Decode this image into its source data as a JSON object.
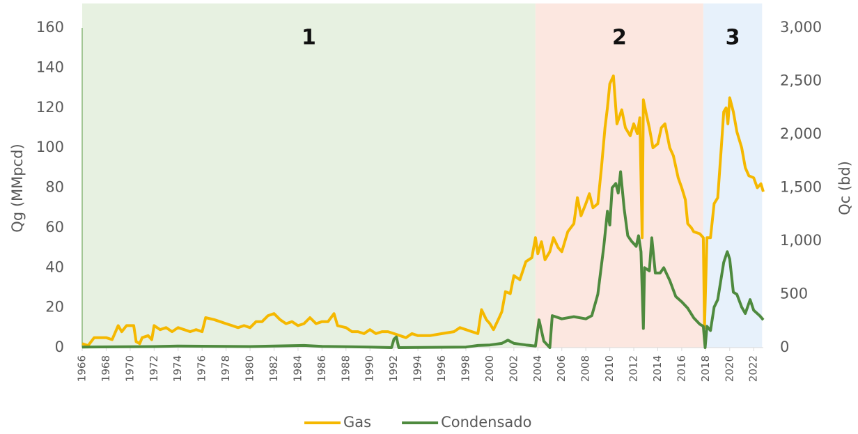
{
  "chart_data": {
    "type": "line",
    "y_label": "Qg (MMpcd)",
    "y2_label": "Qc (bd)",
    "xlim": [
      1966,
      2022.8
    ],
    "xticks": [
      1966,
      1968,
      1970,
      1972,
      1974,
      1976,
      1978,
      1980,
      1982,
      1984,
      1986,
      1988,
      1990,
      1992,
      1994,
      1996,
      1998,
      2000,
      2002,
      2004,
      2006,
      2008,
      2010,
      2012,
      2014,
      2016,
      2018,
      2020,
      2022
    ],
    "ylim": [
      0,
      160
    ],
    "yticks": [
      0,
      20,
      40,
      60,
      80,
      100,
      120,
      140,
      160
    ],
    "y2lim": [
      0,
      3000
    ],
    "y2ticks": [
      0,
      500,
      {
        "value": 1000,
        "label": "1,000"
      },
      {
        "value": 1500,
        "label": "1,500"
      },
      {
        "value": 2000,
        "label": "2,000"
      },
      {
        "value": 2500,
        "label": "2,500"
      },
      {
        "value": 3000,
        "label": "3,000"
      }
    ],
    "regions": [
      {
        "label": "1",
        "start": 1966,
        "end": 2003.8,
        "color": "#e7f1e1"
      },
      {
        "label": "2",
        "start": 2003.8,
        "end": 2017.8,
        "color": "#fce7e0"
      },
      {
        "label": "3",
        "start": 2017.8,
        "end": 2022.7,
        "color": "#e7f1fb"
      }
    ],
    "series": [
      {
        "name": "Gas",
        "color": "#f5b800",
        "axis": "y",
        "x": [
          1966,
          1966.5,
          1967,
          1967.5,
          1968,
          1968.5,
          1969,
          1969.3,
          1969.7,
          1970,
          1970.3,
          1970.5,
          1970.8,
          1971,
          1971.5,
          1971.8,
          1972,
          1972.5,
          1973,
          1973.5,
          1974,
          1974.5,
          1975,
          1975.5,
          1976,
          1976.3,
          1977,
          1977.5,
          1978,
          1978.5,
          1979,
          1979.5,
          1980,
          1980.5,
          1981,
          1981.5,
          1982,
          1982.5,
          1983,
          1983.5,
          1984,
          1984.5,
          1985,
          1985.5,
          1986,
          1986.5,
          1987,
          1987.3,
          1988,
          1988.5,
          1989,
          1989.5,
          1990,
          1990.5,
          1991,
          1991.5,
          1992,
          1992.5,
          1993,
          1993.5,
          1994,
          1994.5,
          1995,
          1996,
          1997,
          1997.5,
          1998,
          1998.5,
          1999,
          1999.3,
          1999.7,
          2000,
          2000.3,
          2000.7,
          2001,
          2001.3,
          2001.7,
          2002,
          2002.5,
          2003,
          2003.5,
          2003.8,
          2004,
          2004.3,
          2004.6,
          2005,
          2005.3,
          2005.7,
          2006,
          2006.5,
          2007,
          2007.3,
          2007.6,
          2008,
          2008.3,
          2008.6,
          2009,
          2009.3,
          2009.6,
          2009.8,
          2010,
          2010.3,
          2010.6,
          2011,
          2011.3,
          2011.7,
          2012,
          2012.3,
          2012.5,
          2012.7,
          2012.8,
          2013,
          2013.3,
          2013.6,
          2014,
          2014.3,
          2014.6,
          2015,
          2015.3,
          2015.7,
          2016,
          2016.3,
          2016.5,
          2016.8,
          2017,
          2017.5,
          2017.8,
          2017.9,
          2018.1,
          2018.4,
          2018.7,
          2019,
          2019.3,
          2019.5,
          2019.7,
          2019.85,
          2020,
          2020.3,
          2020.6,
          2021,
          2021.3,
          2021.6,
          2022,
          2022.3,
          2022.6,
          2022.8
        ],
        "values": [
          2,
          1,
          5,
          5,
          5,
          4,
          11,
          8,
          11,
          11,
          11,
          3,
          2,
          5,
          6,
          4,
          11,
          9,
          10,
          8,
          10,
          9,
          8,
          9,
          8,
          15,
          14,
          13,
          12,
          11,
          10,
          11,
          10,
          13,
          13,
          16,
          17,
          14,
          12,
          13,
          11,
          12,
          15,
          12,
          13,
          13,
          17,
          11,
          10,
          8,
          8,
          7,
          9,
          7,
          8,
          8,
          7,
          6,
          5,
          7,
          6,
          6,
          6,
          7,
          8,
          10,
          9,
          8,
          7,
          19,
          14,
          12,
          9,
          14,
          18,
          28,
          27,
          36,
          34,
          43,
          45,
          55,
          47,
          53,
          44,
          48,
          55,
          50,
          48,
          58,
          62,
          75,
          66,
          72,
          77,
          70,
          72,
          90,
          110,
          120,
          132,
          136,
          112,
          119,
          110,
          106,
          112,
          107,
          115,
          55,
          124,
          118,
          110,
          100,
          102,
          110,
          112,
          100,
          96,
          85,
          80,
          74,
          62,
          60,
          58,
          57,
          55,
          10,
          55,
          55,
          72,
          75,
          100,
          118,
          120,
          112,
          125,
          118,
          108,
          100,
          90,
          86,
          85,
          80,
          82,
          78
        ]
      },
      {
        "name": "Condensado",
        "color": "#4e8a3e",
        "axis": "y2",
        "x": [
          1966,
          1972,
          1974,
          1980,
          1984.5,
          1986,
          1990,
          1991.8,
          1992,
          1992.2,
          1992.4,
          1998,
          1999,
          2000,
          2001,
          2001.5,
          2002,
          2003,
          2003.8,
          2004.1,
          2004.5,
          2005,
          2005.2,
          2006,
          2007,
          2008,
          2008.5,
          2009,
          2009.5,
          2009.8,
          2010,
          2010.2,
          2010.5,
          2010.7,
          2010.9,
          2011.2,
          2011.5,
          2011.8,
          2012.2,
          2012.4,
          2012.6,
          2012.8,
          2012.9,
          2013.3,
          2013.5,
          2013.8,
          2014.2,
          2014.5,
          2015,
          2015.5,
          2016,
          2016.5,
          2017,
          2017.5,
          2017.8,
          2017.95,
          2018.1,
          2018.4,
          2018.7,
          2019,
          2019.5,
          2019.8,
          2020,
          2020.3,
          2020.6,
          2021,
          2021.3,
          2021.7,
          2022,
          2022.5,
          2022.8
        ],
        "values": [
          5,
          10,
          15,
          10,
          20,
          12,
          5,
          0,
          80,
          100,
          0,
          5,
          20,
          25,
          40,
          70,
          40,
          25,
          15,
          260,
          60,
          0,
          300,
          270,
          290,
          270,
          300,
          500,
          950,
          1280,
          1150,
          1500,
          1540,
          1450,
          1650,
          1300,
          1050,
          1000,
          950,
          1050,
          900,
          180,
          750,
          720,
          1030,
          700,
          700,
          750,
          630,
          480,
          430,
          370,
          280,
          220,
          200,
          0,
          200,
          160,
          380,
          450,
          800,
          900,
          830,
          520,
          500,
          380,
          320,
          450,
          350,
          300,
          260
        ]
      }
    ],
    "legend": "bottom"
  }
}
